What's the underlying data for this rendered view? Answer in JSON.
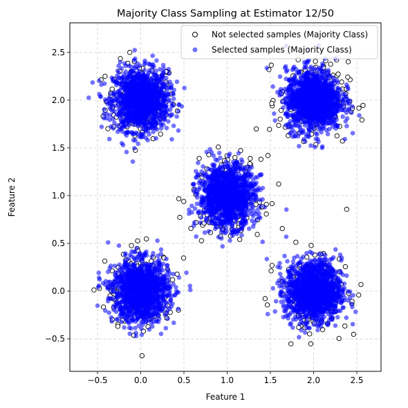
{
  "chart_data": {
    "type": "scatter",
    "title": "Majority Class Sampling at Estimator 12/50",
    "xlabel": "Feature 1",
    "ylabel": "Feature 2",
    "xlim": [
      -0.82,
      2.78
    ],
    "ylim": [
      -0.84,
      2.81
    ],
    "xticks": [
      -0.5,
      0.0,
      0.5,
      1.0,
      1.5,
      2.0,
      2.5
    ],
    "xtick_labels": [
      "−0.5",
      "0.0",
      "0.5",
      "1.0",
      "1.5",
      "2.0",
      "2.5"
    ],
    "yticks": [
      -0.5,
      0.0,
      0.5,
      1.0,
      1.5,
      2.0,
      2.5
    ],
    "ytick_labels": [
      "−0.5",
      "0.0",
      "0.5",
      "1.0",
      "1.5",
      "2.0",
      "2.5"
    ],
    "grid": true,
    "legend_position": "top-right",
    "clusters": [
      {
        "center": [
          0.0,
          2.0
        ],
        "spread": 0.16
      },
      {
        "center": [
          2.0,
          2.0
        ],
        "spread": 0.16
      },
      {
        "center": [
          1.0,
          1.0
        ],
        "spread": 0.16
      },
      {
        "center": [
          0.0,
          0.0
        ],
        "spread": 0.16
      },
      {
        "center": [
          2.0,
          0.0
        ],
        "spread": 0.16
      }
    ],
    "series": [
      {
        "name": "Not selected samples (Majority Class)",
        "marker": "hollow-circle",
        "color": "#000000"
      },
      {
        "name": "Selected samples (Majority Class)",
        "marker": "filled-circle",
        "color": "#0000ff",
        "alpha": 0.55
      }
    ]
  }
}
